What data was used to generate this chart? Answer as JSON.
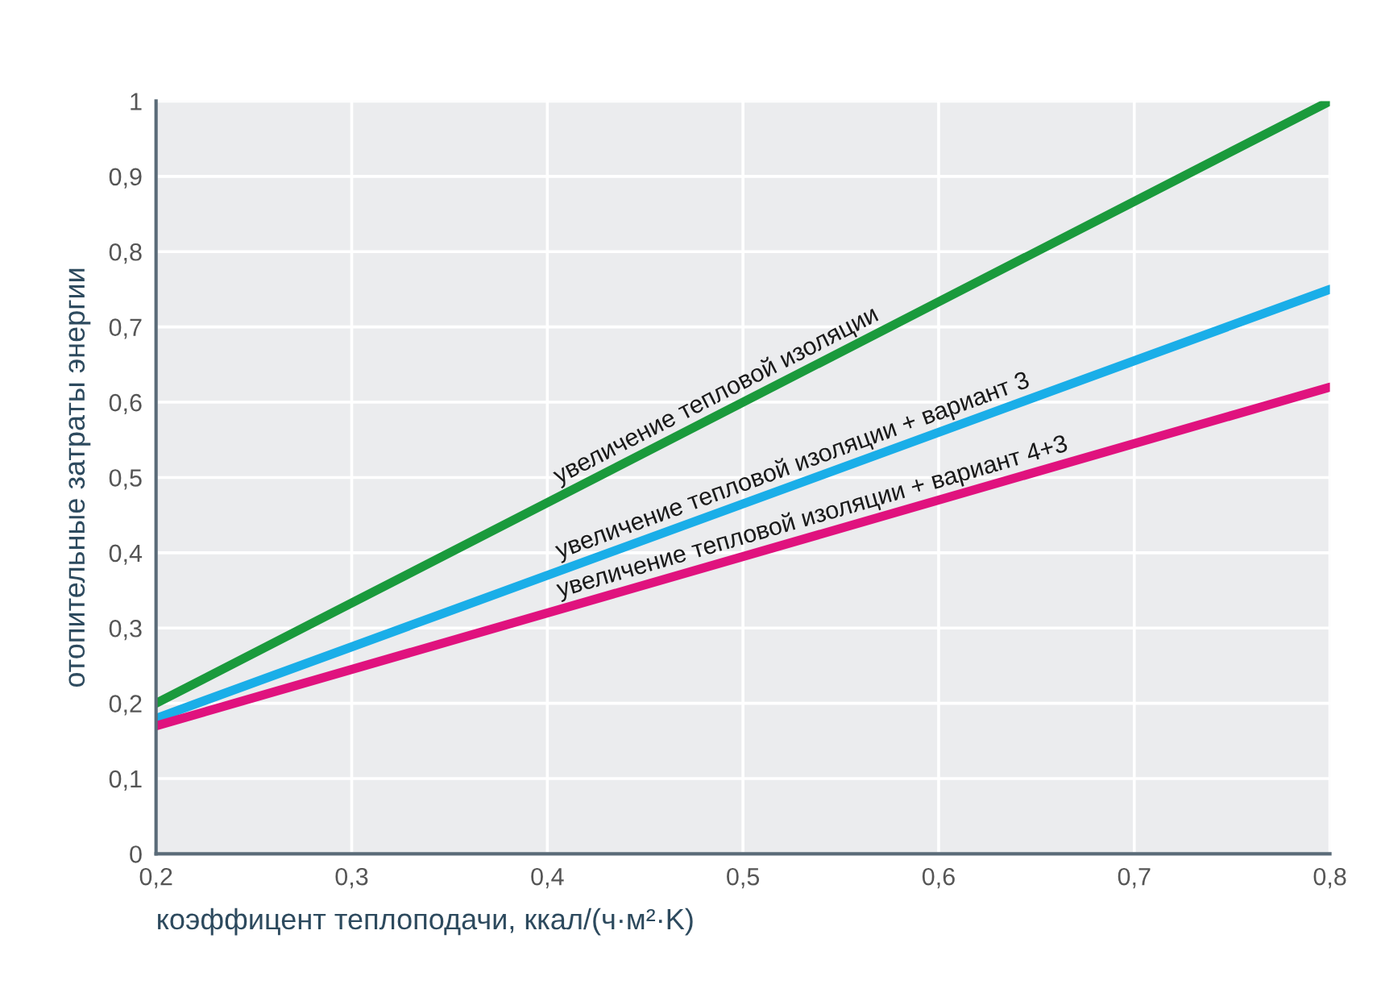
{
  "chart_data": {
    "type": "line",
    "xlabel": "коэффицент теплоподачи, ккал/(ч·м²·K)",
    "ylabel": "отопительные затраты энергии",
    "x": [
      0.2,
      0.8
    ],
    "series": [
      {
        "name": "увеличение тепловой изоляции",
        "color": "#1a9a3c",
        "values": [
          0.2,
          1.0
        ]
      },
      {
        "name": "увеличение тепловой изоляции + вариант 3",
        "color": "#1aaee8",
        "values": [
          0.18,
          0.75
        ]
      },
      {
        "name": "увеличение тепловой изоляции + вариант 4+3",
        "color": "#e0127e",
        "values": [
          0.17,
          0.62
        ]
      }
    ],
    "xlim": [
      0.2,
      0.8
    ],
    "ylim": [
      0,
      1
    ],
    "xticks": [
      {
        "value": 0.2,
        "label": "0,2"
      },
      {
        "value": 0.3,
        "label": "0,3"
      },
      {
        "value": 0.4,
        "label": "0,4"
      },
      {
        "value": 0.5,
        "label": "0,5"
      },
      {
        "value": 0.6,
        "label": "0,6"
      },
      {
        "value": 0.7,
        "label": "0,7"
      },
      {
        "value": 0.8,
        "label": "0,8"
      }
    ],
    "yticks": [
      0,
      {
        "value": 0.1,
        "label": "0,1"
      },
      {
        "value": 0.2,
        "label": "0,2"
      },
      {
        "value": 0.3,
        "label": "0,3"
      },
      {
        "value": 0.4,
        "label": "0,4"
      },
      {
        "value": 0.5,
        "label": "0,5"
      },
      {
        "value": 0.6,
        "label": "0,6"
      },
      {
        "value": 0.7,
        "label": "0,7"
      },
      {
        "value": 0.8,
        "label": "0,8"
      },
      {
        "value": 0.9,
        "label": "0,9"
      },
      1
    ],
    "grid": true,
    "legend": false,
    "line_style": "solid",
    "marker": "none"
  }
}
